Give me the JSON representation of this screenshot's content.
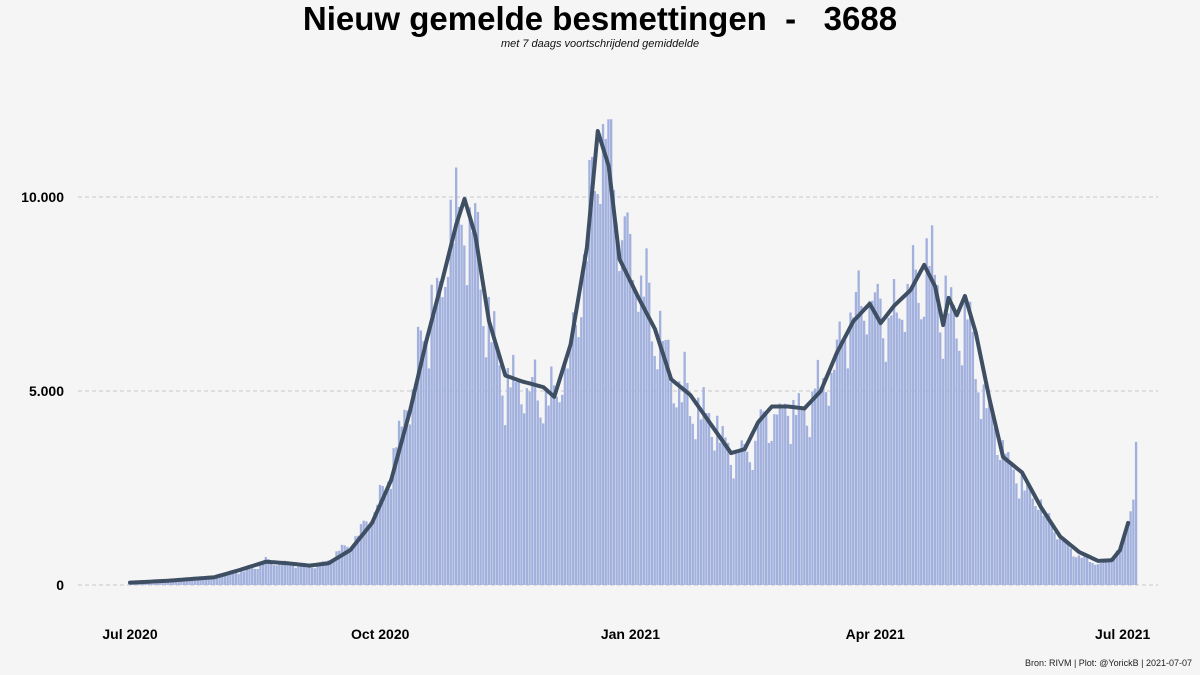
{
  "header": {
    "title": "Nieuw gemelde besmettingen  -   3688",
    "subtitle": "met 7 daags voortschrijdend gemiddelde"
  },
  "footer": {
    "caption": "Bron: RIVM | Plot: @YorickB |  2021-07-07"
  },
  "colors": {
    "bar": "#a2b0dd",
    "line": "#3f4f63",
    "grid": "#c8c8c8",
    "background": "#f5f5f5"
  },
  "chart_data": {
    "type": "bar",
    "x_start": "2020-07-01",
    "x_end": "2021-07-07",
    "ylim": [
      0,
      13000
    ],
    "yticks": [
      0,
      5000,
      10000
    ],
    "ytick_labels": [
      "0",
      "5.000",
      "10.000"
    ],
    "xtick_dates": [
      "2020-07-01",
      "2020-10-01",
      "2021-01-01",
      "2021-04-01",
      "2021-07-01"
    ],
    "xtick_labels": [
      "Jul 2020",
      "Oct 2020",
      "Jan 2021",
      "Apr 2021",
      "Jul 2021"
    ],
    "grid": "horizontal dashed",
    "series": [
      {
        "kind": "bar",
        "anchors": [
          [
            "2020-07-01",
            60
          ],
          [
            "2020-07-15",
            110
          ],
          [
            "2020-08-01",
            210
          ],
          [
            "2020-08-15",
            420
          ],
          [
            "2020-08-20",
            620
          ],
          [
            "2020-08-28",
            560
          ],
          [
            "2020-09-05",
            480
          ],
          [
            "2020-09-12",
            620
          ],
          [
            "2020-09-20",
            1050
          ],
          [
            "2020-09-28",
            1800
          ],
          [
            "2020-10-05",
            2900
          ],
          [
            "2020-10-12",
            5000
          ],
          [
            "2020-10-18",
            6500
          ],
          [
            "2020-10-24",
            8200
          ],
          [
            "2020-10-30",
            9900
          ],
          [
            "2020-11-04",
            9500
          ],
          [
            "2020-11-10",
            7000
          ],
          [
            "2020-11-16",
            5200
          ],
          [
            "2020-11-22",
            5000
          ],
          [
            "2020-11-28",
            5200
          ],
          [
            "2020-12-04",
            4900
          ],
          [
            "2020-12-10",
            5800
          ],
          [
            "2020-12-16",
            8400
          ],
          [
            "2020-12-20",
            11200
          ],
          [
            "2020-12-25",
            10500
          ],
          [
            "2020-12-31",
            8500
          ],
          [
            "2021-01-06",
            7500
          ],
          [
            "2021-01-12",
            6300
          ],
          [
            "2021-01-18",
            5300
          ],
          [
            "2021-01-25",
            4600
          ],
          [
            "2021-02-01",
            4100
          ],
          [
            "2021-02-07",
            3400
          ],
          [
            "2021-02-13",
            3500
          ],
          [
            "2021-02-20",
            4300
          ],
          [
            "2021-02-27",
            4600
          ],
          [
            "2021-03-06",
            4500
          ],
          [
            "2021-03-12",
            4900
          ],
          [
            "2021-03-18",
            6000
          ],
          [
            "2021-03-24",
            7100
          ],
          [
            "2021-03-30",
            7300
          ],
          [
            "2021-04-06",
            6800
          ],
          [
            "2021-04-12",
            7300
          ],
          [
            "2021-04-19",
            8200
          ],
          [
            "2021-04-25",
            7300
          ],
          [
            "2021-04-30",
            7100
          ],
          [
            "2021-05-06",
            6400
          ],
          [
            "2021-05-12",
            4700
          ],
          [
            "2021-05-18",
            3500
          ],
          [
            "2021-05-25",
            2700
          ],
          [
            "2021-06-01",
            2000
          ],
          [
            "2021-06-08",
            1200
          ],
          [
            "2021-06-15",
            750
          ],
          [
            "2021-06-22",
            560
          ],
          [
            "2021-06-27",
            700
          ],
          [
            "2021-07-01",
            1000
          ],
          [
            "2021-07-05",
            2200
          ],
          [
            "2021-07-06",
            3688
          ]
        ]
      },
      {
        "kind": "line",
        "anchors": [
          [
            "2020-07-01",
            60
          ],
          [
            "2020-07-15",
            110
          ],
          [
            "2020-08-01",
            200
          ],
          [
            "2020-08-10",
            380
          ],
          [
            "2020-08-20",
            600
          ],
          [
            "2020-08-28",
            560
          ],
          [
            "2020-09-05",
            500
          ],
          [
            "2020-09-12",
            560
          ],
          [
            "2020-09-20",
            900
          ],
          [
            "2020-09-28",
            1600
          ],
          [
            "2020-10-05",
            2700
          ],
          [
            "2020-10-12",
            4500
          ],
          [
            "2020-10-18",
            6300
          ],
          [
            "2020-10-24",
            7900
          ],
          [
            "2020-10-29",
            9300
          ],
          [
            "2020-11-01",
            9950
          ],
          [
            "2020-11-05",
            9000
          ],
          [
            "2020-11-10",
            6800
          ],
          [
            "2020-11-16",
            5400
          ],
          [
            "2020-11-22",
            5250
          ],
          [
            "2020-11-30",
            5100
          ],
          [
            "2020-12-04",
            4850
          ],
          [
            "2020-12-10",
            6200
          ],
          [
            "2020-12-16",
            8700
          ],
          [
            "2020-12-20",
            11700
          ],
          [
            "2020-12-24",
            10800
          ],
          [
            "2020-12-28",
            8400
          ],
          [
            "2021-01-04",
            7400
          ],
          [
            "2021-01-10",
            6600
          ],
          [
            "2021-01-16",
            5300
          ],
          [
            "2021-01-23",
            4900
          ],
          [
            "2021-02-01",
            4000
          ],
          [
            "2021-02-07",
            3400
          ],
          [
            "2021-02-12",
            3500
          ],
          [
            "2021-02-17",
            4200
          ],
          [
            "2021-02-22",
            4600
          ],
          [
            "2021-02-28",
            4600
          ],
          [
            "2021-03-06",
            4550
          ],
          [
            "2021-03-12",
            5000
          ],
          [
            "2021-03-18",
            6000
          ],
          [
            "2021-03-24",
            6800
          ],
          [
            "2021-03-30",
            7250
          ],
          [
            "2021-04-03",
            6750
          ],
          [
            "2021-04-08",
            7200
          ],
          [
            "2021-04-14",
            7600
          ],
          [
            "2021-04-19",
            8250
          ],
          [
            "2021-04-23",
            7700
          ],
          [
            "2021-04-26",
            6700
          ],
          [
            "2021-04-28",
            7400
          ],
          [
            "2021-05-01",
            6950
          ],
          [
            "2021-05-04",
            7450
          ],
          [
            "2021-05-08",
            6500
          ],
          [
            "2021-05-13",
            4800
          ],
          [
            "2021-05-18",
            3300
          ],
          [
            "2021-05-25",
            2900
          ],
          [
            "2021-06-01",
            2000
          ],
          [
            "2021-06-08",
            1250
          ],
          [
            "2021-06-15",
            850
          ],
          [
            "2021-06-22",
            620
          ],
          [
            "2021-06-27",
            640
          ],
          [
            "2021-06-30",
            900
          ],
          [
            "2021-07-03",
            1600
          ]
        ]
      }
    ]
  }
}
